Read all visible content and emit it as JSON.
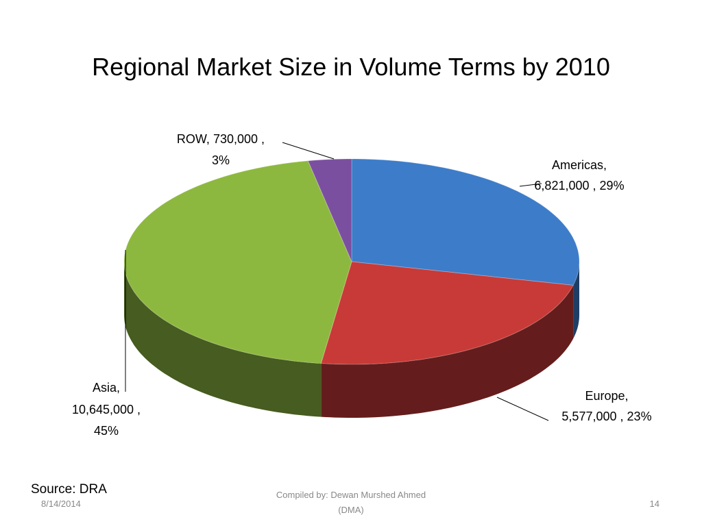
{
  "chart_data": {
    "type": "pie3d",
    "title": "Regional Market Size in Volume Terms by 2010",
    "categories": [
      "Americas",
      "Europe",
      "Asia",
      "ROW"
    ],
    "values": [
      6821000,
      5577000,
      10645000,
      730000
    ],
    "value_labels": [
      "6,821,000",
      "5,577,000",
      "10,645,000",
      "730,000"
    ],
    "percent_labels": [
      "29%",
      "23%",
      "45%",
      "3%"
    ],
    "separator": ",",
    "colors": [
      "#3d7cc9",
      "#c83a37",
      "#8db83f",
      "#7b4fa0"
    ]
  },
  "source": "Source: DRA",
  "footer": {
    "date": "8/14/2014",
    "compiled": [
      "Compiled by: Dewan Murshed Ahmed",
      "(DMA)"
    ],
    "page": "14"
  }
}
